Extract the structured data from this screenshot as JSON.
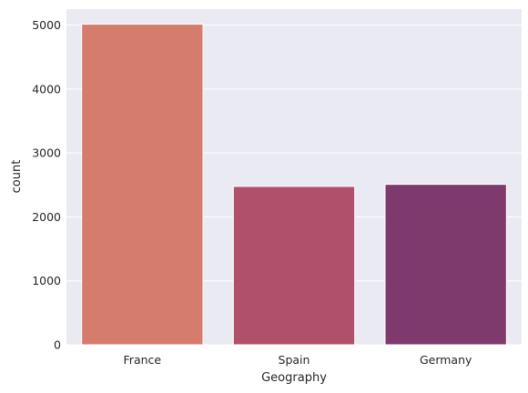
{
  "chart_data": {
    "type": "bar",
    "title": "",
    "xlabel": "Geography",
    "ylabel": "count",
    "categories": [
      "France",
      "Spain",
      "Germany"
    ],
    "values": [
      5014,
      2477,
      2509
    ],
    "colors": [
      "#d57c6c",
      "#b1506b",
      "#7e3a6c"
    ],
    "ylim": [
      0,
      5250
    ],
    "yticks": [
      0,
      1000,
      2000,
      3000,
      4000,
      5000
    ],
    "grid": true,
    "background": "#eaeaf2",
    "grid_color": "#ffffff"
  }
}
